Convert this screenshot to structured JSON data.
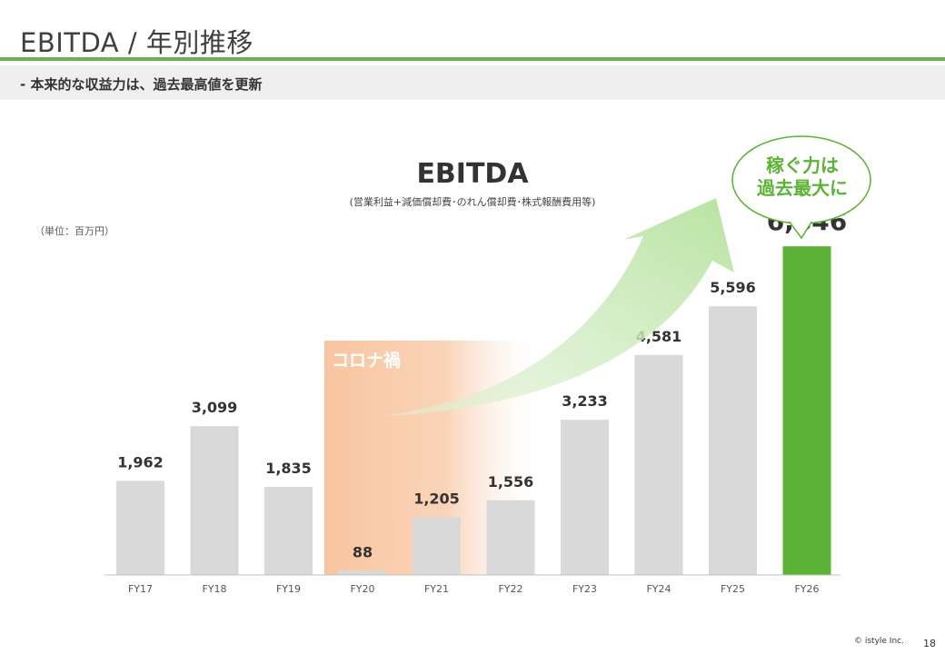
{
  "page": {
    "title": "EBITDA / 年別推移",
    "subtitle": "‐  本来的な収益力は、過去最高値を更新",
    "unit": "（単位：百万円）",
    "copyright": "©  istyle Inc.",
    "page_number": "18"
  },
  "callout": {
    "bubble_text": "稼ぐ力は\n過去最大に",
    "covid_label": "コロナ禍"
  },
  "colors": {
    "bar_default": "#d9d9d9",
    "bar_highlight": "#5bb335",
    "accent_green": "#6ab04c",
    "covid_band": "#f8c5a0",
    "arrow": "#c5e8b3"
  },
  "chart_data": {
    "type": "bar",
    "title": "EBITDA",
    "subtitle": "(営業利益+減価償却費･のれん償却費･株式報酬費用等)",
    "categories": [
      "FY17",
      "FY18",
      "FY19",
      "FY20",
      "FY21",
      "FY22",
      "FY23",
      "FY24",
      "FY25",
      "FY26"
    ],
    "values": [
      1962,
      3099,
      1835,
      88,
      1205,
      1556,
      3233,
      4581,
      5596,
      6846
    ],
    "value_labels": [
      "1,962",
      "3,099",
      "1,835",
      "88",
      "1,205",
      "1,556",
      "3,233",
      "4,581",
      "5,596",
      "6,846"
    ],
    "highlight_category": "FY26",
    "ylim": [
      0,
      7000
    ],
    "grid": false,
    "legend": "none"
  }
}
